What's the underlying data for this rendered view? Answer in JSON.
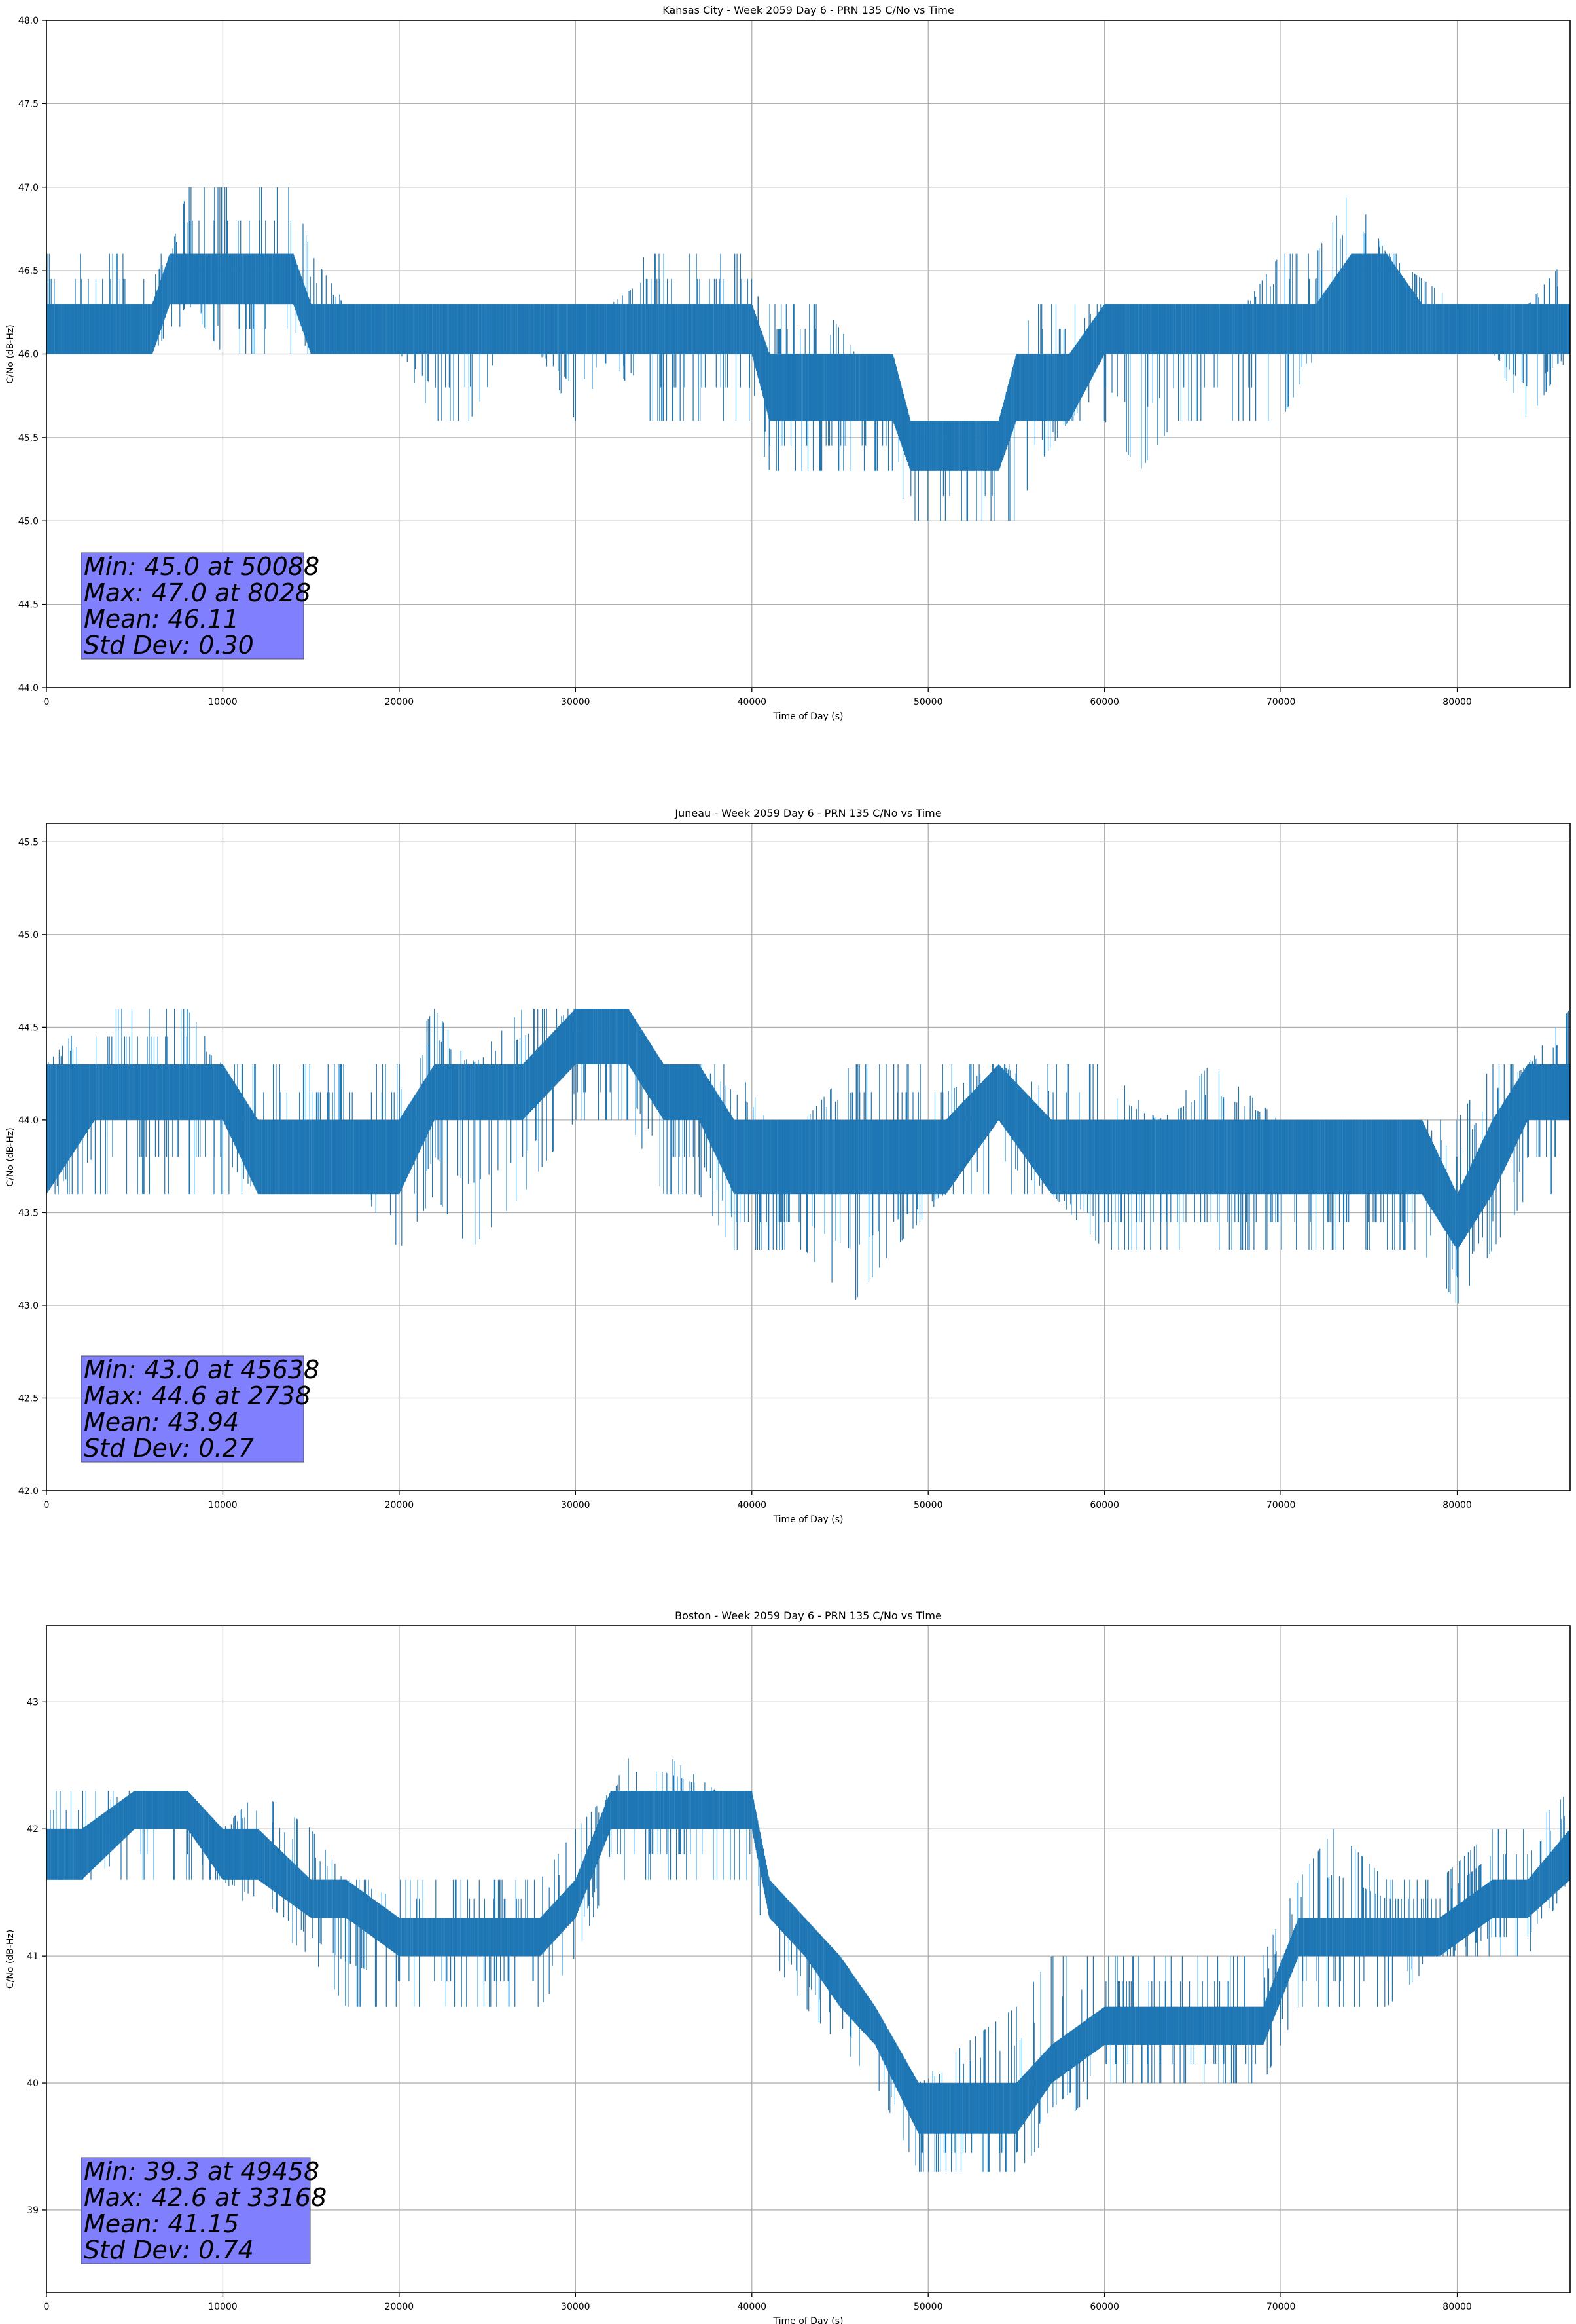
{
  "figure": {
    "background": "#ffffff",
    "series_color": "#1f77b4",
    "grid_color": "#b0b0b0",
    "stats_box_color": "#8080ff"
  },
  "chart_data": [
    {
      "type": "line",
      "title": "Kansas City - Week 2059 Day 6 - PRN 135 C/No vs Time",
      "xlabel": "Time of Day (s)",
      "ylabel": "C/No (dB-Hz)",
      "xlim": [
        0,
        86400
      ],
      "ylim": [
        44.0,
        48.0
      ],
      "xticks": [
        0,
        10000,
        20000,
        30000,
        40000,
        50000,
        60000,
        70000,
        80000
      ],
      "yticks": [
        44.0,
        44.5,
        45.0,
        45.5,
        46.0,
        46.5,
        47.0,
        47.5,
        48.0
      ],
      "ytick_decimals": 1,
      "grid": true,
      "series": [
        {
          "x": [
            0,
            2000,
            4000,
            6000,
            7000,
            8028,
            10000,
            12000,
            14000,
            15000,
            17000,
            20000,
            22000,
            24000,
            26000,
            28000,
            30000,
            32000,
            34000,
            36000,
            38000,
            40000,
            41000,
            42000,
            44000,
            46000,
            48000,
            49000,
            50088,
            52000,
            54000,
            55000,
            56000,
            58000,
            60000,
            62000,
            64000,
            66000,
            68000,
            70000,
            72000,
            74000,
            76000,
            78000,
            80000,
            82000,
            84000,
            86400
          ],
          "high": [
            46.6,
            46.6,
            46.6,
            46.6,
            46.6,
            47.0,
            47.0,
            47.0,
            47.0,
            46.6,
            46.3,
            46.3,
            46.3,
            46.3,
            46.3,
            46.3,
            46.3,
            46.3,
            46.6,
            46.6,
            46.6,
            46.6,
            46.3,
            46.3,
            46.3,
            46.0,
            46.0,
            45.6,
            45.6,
            45.6,
            45.6,
            46.0,
            46.3,
            46.3,
            46.3,
            46.3,
            46.3,
            46.3,
            46.3,
            46.6,
            46.6,
            47.0,
            46.6,
            46.6,
            46.3,
            46.3,
            46.3,
            46.6
          ],
          "band_hi": [
            46.3,
            46.3,
            46.3,
            46.3,
            46.6,
            46.6,
            46.6,
            46.6,
            46.6,
            46.3,
            46.3,
            46.3,
            46.3,
            46.3,
            46.3,
            46.3,
            46.3,
            46.3,
            46.3,
            46.3,
            46.3,
            46.3,
            46.0,
            46.0,
            46.0,
            46.0,
            46.0,
            45.6,
            45.6,
            45.6,
            45.6,
            46.0,
            46.0,
            46.0,
            46.3,
            46.3,
            46.3,
            46.3,
            46.3,
            46.3,
            46.3,
            46.6,
            46.6,
            46.3,
            46.3,
            46.3,
            46.3,
            46.3
          ],
          "band_lo": [
            46.0,
            46.0,
            46.0,
            46.0,
            46.3,
            46.3,
            46.3,
            46.3,
            46.3,
            46.0,
            46.0,
            46.0,
            46.0,
            46.0,
            46.0,
            46.0,
            46.0,
            46.0,
            46.0,
            46.0,
            46.0,
            46.0,
            45.6,
            45.6,
            45.6,
            45.6,
            45.6,
            45.3,
            45.3,
            45.3,
            45.3,
            45.6,
            45.6,
            45.6,
            46.0,
            46.0,
            46.0,
            46.0,
            46.0,
            46.0,
            46.0,
            46.0,
            46.0,
            46.0,
            46.0,
            46.0,
            46.0,
            46.0
          ],
          "low": [
            46.0,
            46.0,
            46.0,
            46.0,
            46.0,
            46.3,
            46.0,
            46.0,
            46.0,
            46.0,
            46.0,
            46.0,
            45.6,
            45.6,
            46.0,
            46.0,
            45.6,
            46.0,
            45.6,
            45.6,
            45.6,
            45.6,
            45.3,
            45.3,
            45.3,
            45.3,
            45.3,
            45.0,
            45.0,
            45.0,
            45.0,
            45.0,
            45.3,
            45.6,
            45.6,
            45.3,
            45.6,
            45.6,
            45.6,
            45.6,
            46.0,
            46.0,
            46.0,
            46.0,
            46.0,
            46.0,
            45.6,
            46.0
          ]
        }
      ],
      "stats": [
        "Min: 45.0 at 50088",
        "Max: 47.0 at 8028",
        "Mean: 46.11",
        "Std Dev: 0.30"
      ]
    },
    {
      "type": "line",
      "title": "Juneau - Week 2059 Day 6 - PRN 135 C/No vs Time",
      "xlabel": "Time of Day (s)",
      "ylabel": "C/No (dB-Hz)",
      "xlim": [
        0,
        86400
      ],
      "ylim": [
        42.0,
        45.6
      ],
      "xticks": [
        0,
        10000,
        20000,
        30000,
        40000,
        50000,
        60000,
        70000,
        80000
      ],
      "yticks": [
        42.0,
        42.5,
        43.0,
        43.5,
        44.0,
        44.5,
        45.0,
        45.5
      ],
      "ytick_decimals": 1,
      "grid": true,
      "series": [
        {
          "x": [
            0,
            2738,
            5000,
            8000,
            10000,
            12000,
            15000,
            18000,
            20000,
            22000,
            24000,
            27000,
            30000,
            33000,
            35000,
            37000,
            39000,
            41000,
            43000,
            45638,
            48000,
            51000,
            54000,
            57000,
            60000,
            63000,
            66000,
            70000,
            73000,
            76000,
            78000,
            80000,
            82000,
            84000,
            86400
          ],
          "high": [
            44.3,
            44.6,
            44.6,
            44.6,
            44.3,
            44.3,
            44.3,
            44.3,
            44.3,
            44.6,
            44.3,
            44.6,
            44.6,
            44.6,
            44.3,
            44.3,
            44.3,
            44.0,
            44.0,
            44.3,
            44.3,
            44.3,
            44.3,
            44.3,
            44.3,
            44.0,
            44.3,
            44.0,
            44.0,
            44.0,
            44.0,
            44.0,
            44.3,
            44.3,
            44.6
          ],
          "band_hi": [
            44.3,
            44.3,
            44.3,
            44.3,
            44.3,
            44.0,
            44.0,
            44.0,
            44.0,
            44.3,
            44.3,
            44.3,
            44.6,
            44.6,
            44.3,
            44.3,
            44.0,
            44.0,
            44.0,
            44.0,
            44.0,
            44.0,
            44.3,
            44.0,
            44.0,
            44.0,
            44.0,
            44.0,
            44.0,
            44.0,
            44.0,
            43.6,
            44.0,
            44.3,
            44.3
          ],
          "band_lo": [
            43.6,
            44.0,
            44.0,
            44.0,
            44.0,
            43.6,
            43.6,
            43.6,
            43.6,
            44.0,
            44.0,
            44.0,
            44.3,
            44.3,
            44.0,
            44.0,
            43.6,
            43.6,
            43.6,
            43.6,
            43.6,
            43.6,
            44.0,
            43.6,
            43.6,
            43.6,
            43.6,
            43.6,
            43.6,
            43.6,
            43.6,
            43.3,
            43.6,
            44.0,
            44.0
          ],
          "low": [
            43.6,
            43.6,
            43.6,
            43.6,
            43.6,
            43.6,
            43.6,
            43.6,
            43.3,
            43.6,
            43.3,
            43.6,
            44.0,
            44.0,
            43.6,
            43.6,
            43.3,
            43.3,
            43.3,
            43.0,
            43.3,
            43.6,
            43.6,
            43.6,
            43.3,
            43.3,
            43.3,
            43.3,
            43.3,
            43.3,
            43.3,
            43.0,
            43.3,
            43.6,
            43.6
          ]
        }
      ],
      "stats": [
        "Min: 43.0 at 45638",
        "Max: 44.6 at 2738",
        "Mean: 43.94",
        "Std Dev: 0.27"
      ]
    },
    {
      "type": "line",
      "title": "Boston - Week 2059 Day 6 - PRN 135 C/No vs Time",
      "xlabel": "Time of Day (s)",
      "ylabel": "C/No (dB-Hz)",
      "xlim": [
        0,
        86400
      ],
      "ylim": [
        38.35,
        43.6
      ],
      "xticks": [
        0,
        10000,
        20000,
        30000,
        40000,
        50000,
        60000,
        70000,
        80000
      ],
      "yticks": [
        39,
        40,
        41,
        42,
        43
      ],
      "ytick_decimals": 0,
      "grid": true,
      "series": [
        {
          "x": [
            0,
            2000,
            5000,
            8000,
            10000,
            12000,
            15000,
            17000,
            20000,
            23000,
            26000,
            28000,
            30000,
            32000,
            33168,
            35000,
            38000,
            40000,
            41000,
            43000,
            45000,
            47000,
            49458,
            52000,
            55000,
            57000,
            60000,
            63000,
            66000,
            69000,
            71000,
            73000,
            76000,
            79000,
            82000,
            84000,
            86400
          ],
          "high": [
            42.3,
            42.3,
            42.3,
            42.3,
            42.0,
            42.3,
            42.0,
            41.6,
            41.6,
            41.6,
            41.6,
            41.6,
            42.0,
            42.3,
            42.6,
            42.6,
            42.3,
            42.3,
            41.6,
            41.3,
            41.0,
            40.6,
            40.0,
            40.3,
            40.6,
            41.0,
            41.0,
            41.0,
            41.0,
            41.0,
            41.6,
            42.0,
            41.6,
            41.6,
            42.0,
            42.0,
            42.3
          ],
          "band_hi": [
            42.0,
            42.0,
            42.3,
            42.3,
            42.0,
            42.0,
            41.6,
            41.6,
            41.3,
            41.3,
            41.3,
            41.3,
            41.6,
            42.3,
            42.3,
            42.3,
            42.3,
            42.3,
            41.6,
            41.3,
            41.0,
            40.6,
            40.0,
            40.0,
            40.0,
            40.3,
            40.6,
            40.6,
            40.6,
            40.6,
            41.3,
            41.3,
            41.3,
            41.3,
            41.6,
            41.6,
            42.0
          ],
          "band_lo": [
            41.6,
            41.6,
            42.0,
            42.0,
            41.6,
            41.6,
            41.3,
            41.3,
            41.0,
            41.0,
            41.0,
            41.0,
            41.3,
            42.0,
            42.0,
            42.0,
            42.0,
            42.0,
            41.3,
            41.0,
            40.6,
            40.3,
            39.6,
            39.6,
            39.6,
            40.0,
            40.3,
            40.3,
            40.3,
            40.3,
            41.0,
            41.0,
            41.0,
            41.0,
            41.3,
            41.3,
            41.6
          ],
          "low": [
            41.6,
            41.6,
            41.6,
            41.6,
            41.6,
            41.3,
            41.0,
            40.6,
            40.6,
            40.6,
            40.6,
            40.6,
            41.0,
            41.6,
            41.6,
            41.6,
            41.6,
            41.6,
            41.0,
            40.6,
            40.3,
            40.0,
            39.3,
            39.3,
            39.3,
            39.6,
            40.0,
            40.0,
            40.0,
            40.0,
            40.6,
            40.6,
            40.6,
            41.0,
            41.0,
            41.0,
            41.6
          ]
        }
      ],
      "stats": [
        "Min: 39.3 at 49458",
        "Max: 42.6 at 33168",
        "Mean: 41.15",
        "Std Dev: 0.74"
      ]
    }
  ]
}
